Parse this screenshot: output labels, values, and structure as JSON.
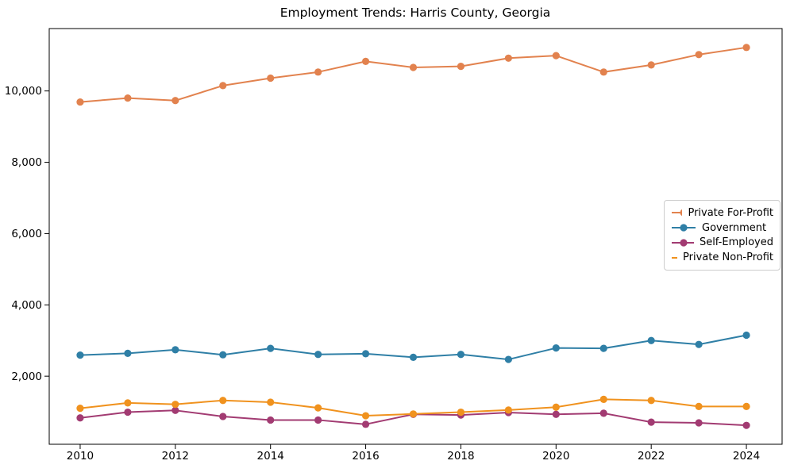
{
  "figure": {
    "title": "Employment Trends: Harris County, Georgia"
  },
  "chart_data": {
    "type": "line",
    "title": "Employment Trends: Harris County, Georgia",
    "xlabel": "",
    "ylabel": "",
    "grid": false,
    "legend_position": "center right",
    "x": [
      2010,
      2011,
      2012,
      2013,
      2014,
      2015,
      2016,
      2017,
      2018,
      2019,
      2020,
      2021,
      2022,
      2023,
      2024
    ],
    "x_ticks": [
      2010,
      2012,
      2014,
      2016,
      2018,
      2020,
      2022,
      2024
    ],
    "x_tick_labels": [
      "2010",
      "2012",
      "2014",
      "2016",
      "2018",
      "2020",
      "2022",
      "2024"
    ],
    "y_ticks": [
      2000,
      4000,
      6000,
      8000,
      10000
    ],
    "y_tick_labels": [
      "2,000",
      "4,000",
      "6,000",
      "8,000",
      "10,000"
    ],
    "xlim": [
      2009.35,
      2024.75
    ],
    "ylim": [
      90,
      11750
    ],
    "series": [
      {
        "name": "Private For-Profit",
        "color": "#E2824E",
        "values": [
          9690,
          9800,
          9730,
          10150,
          10360,
          10530,
          10830,
          10660,
          10690,
          10920,
          10990,
          10530,
          10730,
          11020,
          11220
        ]
      },
      {
        "name": "Government",
        "color": "#2F7FA6",
        "values": [
          2590,
          2640,
          2740,
          2600,
          2780,
          2610,
          2630,
          2530,
          2610,
          2470,
          2790,
          2780,
          3000,
          2890,
          3150
        ]
      },
      {
        "name": "Self-Employed",
        "color": "#A23B72",
        "values": [
          830,
          990,
          1040,
          870,
          770,
          770,
          650,
          930,
          910,
          980,
          930,
          960,
          710,
          690,
          620
        ]
      },
      {
        "name": "Private Non-Profit",
        "color": "#F0921E",
        "values": [
          1100,
          1250,
          1210,
          1320,
          1270,
          1110,
          890,
          940,
          990,
          1050,
          1130,
          1350,
          1320,
          1150,
          1150
        ]
      }
    ]
  }
}
